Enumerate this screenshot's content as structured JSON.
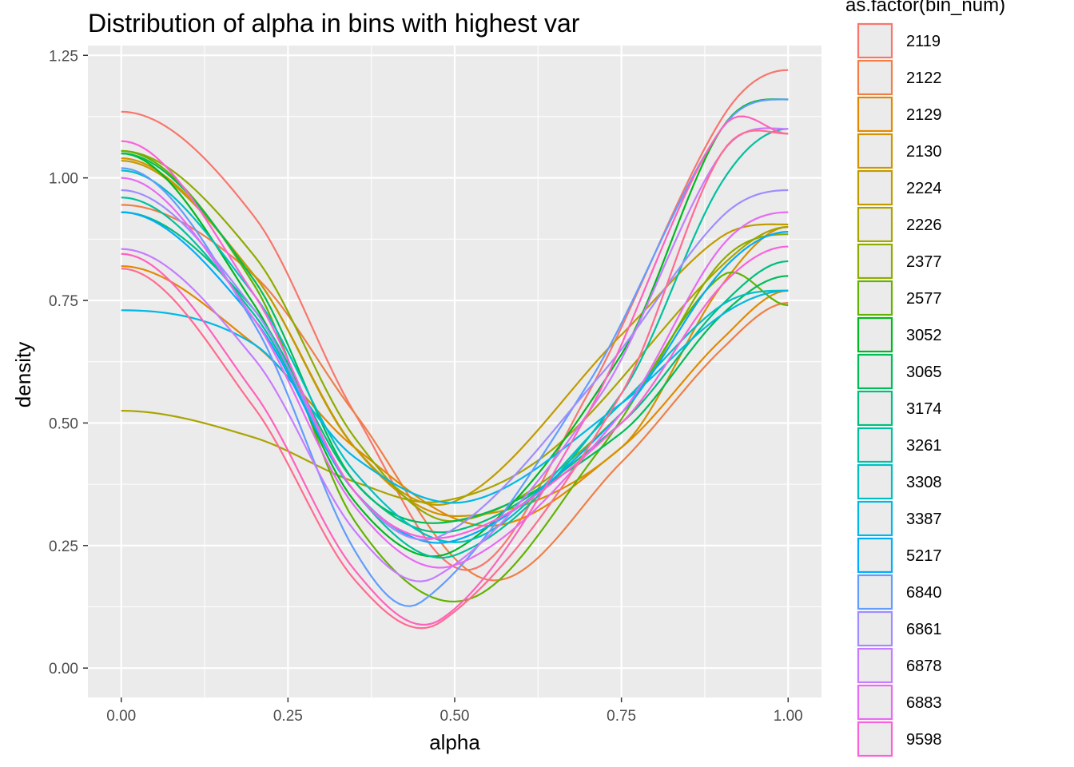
{
  "chart_data": {
    "type": "line",
    "title": "Distribution of alpha in bins with highest var",
    "xlabel": "alpha",
    "ylabel": "density",
    "xlim": [
      -0.05,
      1.05
    ],
    "ylim": [
      -0.06,
      1.27
    ],
    "x_ticks": [
      0,
      0.25,
      0.5,
      0.75,
      1
    ],
    "x_tick_labels": [
      "0.00",
      "0.25",
      "0.50",
      "0.75",
      "1.00"
    ],
    "y_ticks": [
      0,
      0.25,
      0.5,
      0.75,
      1,
      1.25
    ],
    "y_tick_labels": [
      "0.00",
      "0.25",
      "0.50",
      "0.75",
      "1.00",
      "1.25"
    ],
    "grid": true,
    "legend": {
      "title": "as.factor(bin_num)",
      "placement": "right"
    },
    "series": [
      {
        "name": "2119",
        "color": "#F8766D",
        "x": [
          0,
          0.2,
          0.35,
          0.52,
          0.7,
          0.9,
          1
        ],
        "y": [
          1.135,
          0.92,
          0.52,
          0.2,
          0.56,
          1.12,
          1.22
        ]
      },
      {
        "name": "2122",
        "color": "#EF7F47",
        "x": [
          0,
          0.2,
          0.35,
          0.55,
          0.75,
          0.9,
          1
        ],
        "y": [
          0.945,
          0.8,
          0.52,
          0.18,
          0.42,
          0.65,
          0.745
        ]
      },
      {
        "name": "2129",
        "color": "#E38900",
        "x": [
          0,
          0.2,
          0.35,
          0.55,
          0.75,
          0.9,
          1
        ],
        "y": [
          0.82,
          0.66,
          0.45,
          0.29,
          0.45,
          0.67,
          0.77
        ]
      },
      {
        "name": "2130",
        "color": "#D39200",
        "x": [
          0,
          0.2,
          0.35,
          0.5,
          0.75,
          0.9,
          1
        ],
        "y": [
          1.04,
          0.8,
          0.45,
          0.31,
          0.45,
          0.78,
          0.9
        ]
      },
      {
        "name": "2224",
        "color": "#C09B00",
        "x": [
          0,
          0.2,
          0.35,
          0.5,
          0.75,
          0.9,
          1
        ],
        "y": [
          1.035,
          0.8,
          0.45,
          0.34,
          0.68,
          0.88,
          0.905
        ]
      },
      {
        "name": "2226",
        "color": "#A9A400",
        "x": [
          0,
          0.2,
          0.35,
          0.48,
          0.65,
          0.9,
          1
        ],
        "y": [
          0.525,
          0.47,
          0.38,
          0.34,
          0.45,
          0.82,
          0.9
        ]
      },
      {
        "name": "2377",
        "color": "#8EAB00",
        "x": [
          0,
          0.2,
          0.35,
          0.5,
          0.75,
          0.9,
          1
        ],
        "y": [
          1.055,
          0.84,
          0.47,
          0.3,
          0.52,
          0.83,
          0.885
        ]
      },
      {
        "name": "2577",
        "color": "#64B200",
        "x": [
          0,
          0.2,
          0.35,
          0.52,
          0.72,
          0.9,
          1
        ],
        "y": [
          1.055,
          0.78,
          0.3,
          0.14,
          0.45,
          0.8,
          0.74
        ]
      },
      {
        "name": "3052",
        "color": "#00B81F",
        "x": [
          0,
          0.2,
          0.35,
          0.5,
          0.75,
          0.9,
          1
        ],
        "y": [
          1.05,
          0.74,
          0.34,
          0.24,
          0.64,
          1.1,
          1.16
        ]
      },
      {
        "name": "3065",
        "color": "#00BC56",
        "x": [
          0,
          0.2,
          0.35,
          0.5,
          0.75,
          0.9,
          1
        ],
        "y": [
          1.05,
          0.79,
          0.38,
          0.3,
          0.48,
          0.72,
          0.8
        ]
      },
      {
        "name": "3174",
        "color": "#00BE7D",
        "x": [
          0,
          0.2,
          0.35,
          0.5,
          0.75,
          0.9,
          1
        ],
        "y": [
          0.93,
          0.73,
          0.38,
          0.28,
          0.5,
          0.74,
          0.83
        ]
      },
      {
        "name": "3261",
        "color": "#00C19F",
        "x": [
          0,
          0.2,
          0.35,
          0.5,
          0.75,
          0.9,
          1
        ],
        "y": [
          0.96,
          0.72,
          0.36,
          0.23,
          0.56,
          0.99,
          1.1
        ]
      },
      {
        "name": "3308",
        "color": "#00BFC4",
        "x": [
          0,
          0.2,
          0.35,
          0.52,
          0.75,
          0.9,
          1
        ],
        "y": [
          1.015,
          0.76,
          0.4,
          0.26,
          0.54,
          0.74,
          0.77
        ]
      },
      {
        "name": "3387",
        "color": "#00B8E5",
        "x": [
          0,
          0.2,
          0.35,
          0.52,
          0.75,
          0.9,
          1
        ],
        "y": [
          0.73,
          0.66,
          0.43,
          0.34,
          0.54,
          0.72,
          0.77
        ]
      },
      {
        "name": "5217",
        "color": "#00ADFA",
        "x": [
          0,
          0.2,
          0.35,
          0.5,
          0.75,
          0.9,
          1
        ],
        "y": [
          0.93,
          0.71,
          0.36,
          0.26,
          0.52,
          0.81,
          0.89
        ]
      },
      {
        "name": "6840",
        "color": "#619CFF",
        "x": [
          0,
          0.2,
          0.35,
          0.45,
          0.7,
          0.9,
          1
        ],
        "y": [
          1.02,
          0.7,
          0.24,
          0.135,
          0.58,
          1.1,
          1.16
        ]
      },
      {
        "name": "6861",
        "color": "#9F8CFF",
        "x": [
          0,
          0.2,
          0.35,
          0.48,
          0.72,
          0.9,
          1
        ],
        "y": [
          0.975,
          0.73,
          0.36,
          0.27,
          0.6,
          0.92,
          0.975
        ]
      },
      {
        "name": "6878",
        "color": "#C77CFF",
        "x": [
          0,
          0.2,
          0.35,
          0.47,
          0.72,
          0.9,
          1
        ],
        "y": [
          0.855,
          0.63,
          0.28,
          0.185,
          0.56,
          1.05,
          1.1
        ]
      },
      {
        "name": "6883",
        "color": "#E76BF3",
        "x": [
          0,
          0.2,
          0.35,
          0.5,
          0.75,
          0.9,
          1
        ],
        "y": [
          1.0,
          0.71,
          0.33,
          0.21,
          0.52,
          0.86,
          0.93
        ]
      },
      {
        "name": "9598",
        "color": "#FA62DB",
        "x": [
          0,
          0.2,
          0.35,
          0.5,
          0.75,
          0.9,
          1
        ],
        "y": [
          1.075,
          0.76,
          0.36,
          0.27,
          0.5,
          0.78,
          0.86
        ]
      }
    ]
  },
  "extra_series": [
    {
      "name": "",
      "color": "#FF62BC",
      "x": [
        0,
        0.2,
        0.35,
        0.48,
        0.7,
        0.9,
        1
      ],
      "y": [
        0.845,
        0.56,
        0.2,
        0.1,
        0.52,
        1.1,
        1.09
      ]
    },
    {
      "name": "",
      "color": "#FF6C91",
      "x": [
        0,
        0.2,
        0.35,
        0.48,
        0.75,
        0.9,
        1
      ],
      "y": [
        0.815,
        0.53,
        0.18,
        0.095,
        0.56,
        1.05,
        1.09
      ]
    }
  ],
  "extra_legend": [
    {
      "name": "",
      "color": "#FF6C91"
    }
  ]
}
